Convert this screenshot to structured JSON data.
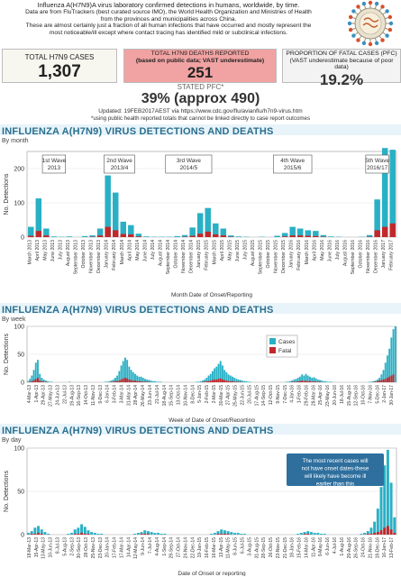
{
  "header": {
    "line1": "Influenza A(H7N9)A virus laboratory confirmed detections in humans, worldwide, by time.",
    "line2": "Data are from FluTrackers (best curated source IMO), the World Health Organization and Ministries of Health",
    "line3": "from the provinces and municipalities across China.",
    "line4": "These are almost certainly just a fraction of all human infections that have occurred and mostly represent the",
    "line5": "most noticeable/ill except where contact tracing has identified mild or subclinical infections."
  },
  "stats": {
    "total_cases_label": "TOTAL H7N9 CASES",
    "total_cases_value": "1,307",
    "deaths_label1": "TOTAL H7N9 DEATHS REPORTED",
    "deaths_label2": "(based on public data; VAST underestimate)",
    "deaths_value": "251",
    "pfc_label1": "PROPORTION OF FATAL CASES (PFC)",
    "pfc_label2": "(VAST underestimate because of poor data)",
    "pfc_value": "19.2%",
    "stated_label": "STATED PFC*",
    "stated_value": "39% (approx 490)",
    "updated": "Updated: 19FEB2017AEST via https://www.cdc.gov/flu/avianflu/h7n9-virus.htm",
    "footnote": "*using public health reported totals that cannot be linked directly to case report outcomes"
  },
  "colors": {
    "cases": "#2ab0c5",
    "fatal": "#c0282c",
    "title": "#2b6f8e",
    "deaths_box": "#f1a2a2"
  },
  "chart_data": [
    {
      "type": "bar",
      "title": "INFLUENZA A(H7N9) VIRUS DETECTIONS AND DEATHS",
      "subtitle": "By month",
      "xlabel": "Month Date of Onset/Reporting",
      "ylabel": "No. Detections",
      "ylim": [
        0,
        250
      ],
      "yticks": [
        0,
        100,
        200
      ],
      "categories": [
        "March 2013",
        "April 2013",
        "May 2013",
        "June 2013",
        "July 2013",
        "August 2013",
        "September 2013",
        "October 2013",
        "November 2013",
        "December 2013",
        "January 2014",
        "February 2014",
        "March 2014",
        "April 2014",
        "May 2014",
        "June 2014",
        "July 2014",
        "August 2014",
        "September 2014",
        "October 2014",
        "November 2014",
        "December 2014",
        "January 2015",
        "February 2015",
        "March 2015",
        "April 2015",
        "May 2015",
        "June 2015",
        "July 2015",
        "August 2015",
        "September 2015",
        "October 2015",
        "November 2015",
        "December 2015",
        "January 2016",
        "February 2016",
        "March 2016",
        "April 2016",
        "May 2016",
        "June 2016",
        "July 2016",
        "August 2016",
        "September 2016",
        "October 2016",
        "November 2016",
        "December 2016",
        "January 2017",
        "February 2017"
      ],
      "series": [
        {
          "name": "Cases",
          "values": [
            30,
            113,
            25,
            2,
            1,
            2,
            0,
            3,
            5,
            25,
            180,
            130,
            45,
            35,
            10,
            2,
            1,
            1,
            1,
            3,
            6,
            28,
            70,
            85,
            40,
            25,
            5,
            2,
            1,
            0,
            1,
            0,
            4,
            12,
            30,
            25,
            20,
            18,
            6,
            2,
            1,
            0,
            0,
            1,
            6,
            110,
            260,
            255
          ]
        },
        {
          "name": "Fatal",
          "values": [
            4,
            18,
            5,
            0,
            0,
            0,
            0,
            0,
            1,
            5,
            30,
            20,
            9,
            8,
            2,
            0,
            0,
            0,
            0,
            0,
            1,
            4,
            10,
            16,
            8,
            5,
            1,
            0,
            0,
            0,
            0,
            0,
            0,
            2,
            5,
            5,
            4,
            3,
            1,
            0,
            0,
            0,
            0,
            0,
            1,
            20,
            30,
            40
          ]
        }
      ],
      "annotations": [
        "1st Wave 2013",
        "2nd Wave 2013/4",
        "3rd Wave 2014/5",
        "4th Wave 2015/6",
        "5th Wave 2016/17"
      ]
    },
    {
      "type": "bar",
      "title": "INFLUENZA A(H7N9) VIRUS DETECTIONS AND DEATHS",
      "subtitle": "By week",
      "xlabel": "Week of Date of Onset/Reporting",
      "ylabel": "No. Detections",
      "ylim": [
        0,
        100
      ],
      "yticks": [
        0,
        50,
        100
      ],
      "legend": [
        "Cases",
        "Fatal"
      ],
      "ticklabels": [
        "4-Mar-13",
        "1-Apr-13",
        "29-Apr-13",
        "27-May-13",
        "24-Jun-13",
        "22-Jul-13",
        "19-Aug-13",
        "16-Sep-13",
        "14-Oct-13",
        "11-Nov-13",
        "9-Dec-13",
        "6-Jan-14",
        "3-Feb-14",
        "3-Mar-14",
        "31-Mar-14",
        "28-Apr-14",
        "26-May-14",
        "23-Jun-14",
        "21-Jul-14",
        "18-Aug-14",
        "15-Sep-14",
        "13-Oct-14",
        "10-Nov-14",
        "8-Dec-14",
        "5-Jan-15",
        "2-Feb-15",
        "2-Mar-15",
        "30-Mar-15",
        "27-Apr-15",
        "25-May-15",
        "22-Jun-15",
        "20-Jul-15",
        "17-Aug-15",
        "14-Sep-15",
        "12-Oct-15",
        "9-Nov-15",
        "7-Dec-15",
        "4-Jan-16",
        "1-Feb-16",
        "29-Feb-16",
        "28-Mar-16",
        "25-Apr-16",
        "23-May-16",
        "20-Jun-16",
        "18-Jul-16",
        "15-Aug-16",
        "12-Sep-16",
        "10-Oct-16",
        "7-Nov-16",
        "5-Dec-16",
        "2-Jan-17",
        "30-Jan-17"
      ],
      "cases": [
        2,
        6,
        12,
        22,
        35,
        40,
        15,
        8,
        5,
        3,
        2,
        1,
        1,
        0,
        0,
        0,
        0,
        0,
        0,
        0,
        0,
        1,
        0,
        0,
        0,
        0,
        0,
        0,
        0,
        0,
        0,
        0,
        0,
        0,
        0,
        0,
        0,
        0,
        0,
        1,
        1,
        2,
        3,
        5,
        8,
        12,
        20,
        30,
        38,
        44,
        40,
        28,
        22,
        18,
        15,
        12,
        10,
        10,
        8,
        6,
        5,
        4,
        3,
        2,
        2,
        1,
        1,
        1,
        0,
        0,
        0,
        0,
        0,
        0,
        0,
        0,
        0,
        0,
        0,
        0,
        0,
        0,
        0,
        0,
        0,
        1,
        1,
        2,
        3,
        5,
        8,
        12,
        15,
        20,
        25,
        28,
        33,
        38,
        30,
        22,
        18,
        14,
        12,
        10,
        8,
        6,
        5,
        4,
        3,
        2,
        2,
        1,
        1,
        0,
        0,
        0,
        0,
        0,
        0,
        0,
        0,
        0,
        0,
        0,
        0,
        0,
        0,
        0,
        0,
        0,
        1,
        1,
        2,
        3,
        5,
        6,
        8,
        10,
        14,
        12,
        15,
        12,
        10,
        8,
        9,
        7,
        5,
        4,
        3,
        2,
        2,
        1,
        1,
        1,
        0,
        0,
        0,
        0,
        0,
        0,
        0,
        0,
        0,
        0,
        0,
        0,
        0,
        0,
        0,
        0,
        0,
        0,
        1,
        1,
        2,
        3,
        5,
        8,
        14,
        22,
        35,
        48,
        60,
        80,
        95,
        100
      ],
      "fatal": [
        0,
        1,
        2,
        4,
        6,
        8,
        3,
        2,
        1,
        1,
        0,
        0,
        0,
        0,
        0,
        0,
        0,
        0,
        0,
        0,
        0,
        0,
        0,
        0,
        0,
        0,
        0,
        0,
        0,
        0,
        0,
        0,
        0,
        0,
        0,
        0,
        0,
        0,
        0,
        0,
        0,
        0,
        1,
        1,
        2,
        2,
        3,
        5,
        7,
        8,
        7,
        5,
        4,
        3,
        3,
        2,
        2,
        2,
        1,
        1,
        1,
        1,
        0,
        0,
        0,
        0,
        0,
        0,
        0,
        0,
        0,
        0,
        0,
        0,
        0,
        0,
        0,
        0,
        0,
        0,
        0,
        0,
        0,
        0,
        0,
        0,
        0,
        0,
        1,
        1,
        2,
        2,
        3,
        4,
        5,
        5,
        6,
        7,
        5,
        4,
        3,
        2,
        2,
        2,
        1,
        1,
        1,
        1,
        0,
        0,
        0,
        0,
        0,
        0,
        0,
        0,
        0,
        0,
        0,
        0,
        0,
        0,
        0,
        0,
        0,
        0,
        0,
        0,
        0,
        0,
        0,
        0,
        0,
        1,
        1,
        1,
        2,
        2,
        3,
        2,
        3,
        2,
        2,
        1,
        2,
        1,
        1,
        1,
        0,
        0,
        0,
        0,
        0,
        0,
        0,
        0,
        0,
        0,
        0,
        0,
        0,
        0,
        0,
        0,
        0,
        0,
        0,
        0,
        0,
        0,
        0,
        0,
        0,
        0,
        1,
        1,
        2,
        3,
        4,
        5,
        6,
        8,
        10,
        12,
        14
      ]
    },
    {
      "type": "bar",
      "title": "INFLUENZA A(H7N9) VIRUS DETECTIONS AND DEATHS",
      "subtitle": "By day",
      "xlabel": "Date of Onset or reporting",
      "ylabel": "No. Detections",
      "ylim": [
        0,
        100
      ],
      "yticks": [
        0,
        50,
        100
      ],
      "annotation": "The most recent cases will not have onset dates-these will likely have become ill earlier than this",
      "ticklabels": [
        "18-Mar-13",
        "15-Apr-13",
        "13-May-13",
        "10-Jun-13",
        "8-Jul-13",
        "5-Aug-13",
        "2-Sep-13",
        "30-Sep-13",
        "28-Oct-13",
        "25-Nov-13",
        "23-Dec-13",
        "20-Jan-14",
        "17-Feb-14",
        "17-Mar-14",
        "14-Apr-14",
        "12-May-14",
        "9-Jun-14",
        "7-Jul-14",
        "4-Aug-14",
        "1-Sep-14",
        "29-Sep-14",
        "27-Oct-14",
        "24-Nov-14",
        "22-Dec-14",
        "19-Jan-15",
        "16-Feb-15",
        "16-Mar-15",
        "13-Apr-15",
        "11-May-15",
        "8-Jun-15",
        "6-Jul-15",
        "3-Aug-15",
        "31-Aug-15",
        "28-Sep-15",
        "26-Oct-15",
        "23-Nov-15",
        "21-Dec-15",
        "18-Jan-16",
        "15-Feb-16",
        "14-Mar-16",
        "11-Apr-16",
        "9-May-16",
        "6-Jun-16",
        "4-Jul-16",
        "1-Aug-16",
        "29-Aug-16",
        "26-Sep-16",
        "24-Oct-16",
        "21-Nov-16",
        "19-Dec-16",
        "16-Jan-17",
        "13-Feb-17"
      ],
      "cases": [
        2,
        4,
        8,
        10,
        6,
        3,
        1,
        0,
        0,
        0,
        0,
        0,
        1,
        2,
        6,
        8,
        12,
        9,
        5,
        3,
        2,
        1,
        1,
        0,
        0,
        0,
        0,
        0,
        0,
        0,
        0,
        0,
        1,
        2,
        3,
        5,
        4,
        3,
        2,
        2,
        1,
        1,
        0,
        0,
        0,
        0,
        0,
        0,
        0,
        0,
        0,
        0,
        0,
        0,
        0,
        1,
        2,
        4,
        6,
        5,
        4,
        3,
        2,
        2,
        1,
        1,
        0,
        0,
        0,
        0,
        0,
        0,
        0,
        0,
        0,
        0,
        0,
        0,
        0,
        0,
        0,
        1,
        2,
        3,
        4,
        3,
        2,
        2,
        1,
        1,
        0,
        0,
        0,
        0,
        0,
        0,
        0,
        0,
        0,
        0,
        1,
        2,
        4,
        8,
        15,
        30,
        55,
        80,
        98,
        60,
        20
      ],
      "fatal": [
        0,
        1,
        1,
        2,
        1,
        0,
        0,
        0,
        0,
        0,
        0,
        0,
        0,
        0,
        1,
        1,
        2,
        1,
        1,
        0,
        0,
        0,
        0,
        0,
        0,
        0,
        0,
        0,
        0,
        0,
        0,
        0,
        0,
        0,
        1,
        1,
        1,
        0,
        0,
        0,
        0,
        0,
        0,
        0,
        0,
        0,
        0,
        0,
        0,
        0,
        0,
        0,
        0,
        0,
        0,
        0,
        0,
        1,
        1,
        1,
        1,
        0,
        0,
        0,
        0,
        0,
        0,
        0,
        0,
        0,
        0,
        0,
        0,
        0,
        0,
        0,
        0,
        0,
        0,
        0,
        0,
        0,
        0,
        1,
        1,
        0,
        0,
        0,
        0,
        0,
        0,
        0,
        0,
        0,
        0,
        0,
        0,
        0,
        0,
        0,
        0,
        0,
        1,
        1,
        2,
        3,
        5,
        8,
        10,
        6,
        2
      ]
    }
  ]
}
